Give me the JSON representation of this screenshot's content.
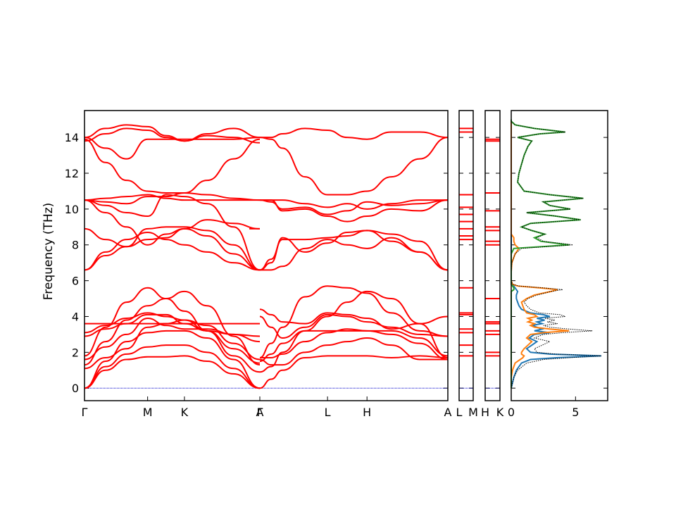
{
  "chart_data": {
    "type": "line",
    "ylabel": "Frequency (THz)",
    "ylim": [
      -0.7,
      15.5
    ],
    "yticks": [
      0,
      2,
      4,
      6,
      8,
      10,
      12,
      14
    ],
    "colors": {
      "bands": "#ff0000",
      "zero_line": "#0000cc",
      "dos_blue": "#1f77b4",
      "dos_orange": "#ff7f0e",
      "dos_green": "#2ca02c",
      "dos_total": "#000000"
    },
    "band_segments": [
      {
        "labels": [
          "Γ",
          "M",
          "K",
          "Γ"
        ],
        "xlim": [
          0,
          1
        ],
        "label_x": [
          0,
          0.36,
          0.57,
          1
        ],
        "x": [
          0,
          0.12,
          0.24,
          0.36,
          0.465,
          0.57,
          0.7,
          0.85,
          1
        ],
        "bands": [
          [
            0,
            1.0,
            1.6,
            1.75,
            1.75,
            1.8,
            1.5,
            0.8,
            0
          ],
          [
            0,
            1.2,
            1.9,
            2.3,
            2.4,
            2.4,
            2.0,
            1.1,
            0
          ],
          [
            0,
            1.5,
            2.6,
            3.1,
            3.2,
            3.2,
            2.8,
            1.6,
            0
          ],
          [
            1.1,
            1.7,
            2.2,
            3.4,
            3.6,
            3.8,
            3.2,
            2.2,
            1.4
          ],
          [
            1.6,
            2.3,
            3.0,
            3.9,
            3.5,
            3.3,
            3.3,
            3.0,
            2.9
          ],
          [
            2.9,
            3.3,
            3.6,
            4.1,
            4.1,
            3.6,
            3.2,
            3.0,
            2.6
          ],
          [
            3.1,
            3.5,
            3.9,
            4.2,
            4.0,
            3.8,
            3.5,
            2.5,
            1.6
          ],
          [
            1.8,
            3.4,
            4.8,
            5.6,
            5.0,
            4.3,
            3.2,
            1.8,
            0.9
          ],
          [
            1.3,
            2.6,
            3.8,
            4.6,
            5.0,
            5.4,
            4.6,
            2.9,
            1.3
          ],
          [
            6.6,
            7.6,
            8.3,
            8.7,
            8.3,
            8.0,
            7.6,
            7.0,
            6.6
          ],
          [
            6.6,
            7.4,
            7.9,
            8.3,
            8.4,
            8.9,
            8.5,
            7.5,
            6.6
          ],
          [
            8.9,
            8.3,
            7.9,
            8.9,
            9.0,
            9.0,
            8.8,
            8.0,
            6.6
          ],
          [
            10.5,
            9.8,
            9.0,
            8.0,
            8.6,
            8.9,
            9.4,
            9.2,
            8.9
          ],
          [
            10.5,
            10.2,
            9.8,
            9.6,
            10.8,
            10.7,
            10.3,
            9.0,
            6.6
          ],
          [
            10.5,
            10.6,
            10.7,
            10.8,
            10.6,
            10.5,
            10.5,
            10.5,
            10.5
          ],
          [
            10.5,
            10.4,
            10.3,
            10.7,
            10.7,
            10.9,
            10.8,
            10.6,
            10.5
          ],
          [
            13.9,
            12.6,
            11.6,
            11.0,
            10.9,
            10.9,
            11.6,
            12.8,
            13.9
          ],
          [
            14.0,
            13.4,
            12.8,
            13.9,
            13.9,
            13.9,
            13.9,
            13.9,
            14.0
          ],
          [
            14.0,
            14.5,
            14.7,
            14.6,
            14.1,
            13.8,
            14.2,
            14.5,
            14.0
          ],
          [
            13.8,
            14.2,
            14.5,
            14.4,
            14.0,
            13.8,
            14.1,
            14.0,
            13.7
          ]
        ],
        "flat_lines": [
          {
            "y": 3.6,
            "x_from": 0,
            "x_to": 1
          },
          {
            "y": 8.9,
            "x_from": 0.94,
            "x_to": 1
          }
        ]
      },
      {
        "labels": [
          "A",
          "L",
          "H",
          "A"
        ],
        "xlim": [
          0,
          1
        ],
        "label_x": [
          0,
          0.36,
          0.57,
          1
        ],
        "x": [
          0,
          0.06,
          0.12,
          0.24,
          0.36,
          0.465,
          0.57,
          0.7,
          0.85,
          1
        ],
        "bands": [
          [
            0,
            0.5,
            1.0,
            1.7,
            1.8,
            1.8,
            1.8,
            1.7,
            1.8,
            1.7
          ],
          [
            1.6,
            1.3,
            1.3,
            2.0,
            2.4,
            2.6,
            2.8,
            2.4,
            1.6,
            1.6
          ],
          [
            1.7,
            1.7,
            1.9,
            2.6,
            3.1,
            3.3,
            3.2,
            3.0,
            2.5,
            1.6
          ],
          [
            1.5,
            1.9,
            2.5,
            3.2,
            3.2,
            3.2,
            3.2,
            3.2,
            2.8,
            1.8
          ],
          [
            4.0,
            3.4,
            2.8,
            3.4,
            4.1,
            4.0,
            3.7,
            3.4,
            3.0,
            2.9
          ],
          [
            4.4,
            4.1,
            3.7,
            3.6,
            4.2,
            4.1,
            3.9,
            3.3,
            3.6,
            4.0
          ],
          [
            1.7,
            2.5,
            3.4,
            5.1,
            5.7,
            5.6,
            5.3,
            4.2,
            3.2,
            2.9
          ],
          [
            0.9,
            1.2,
            2.0,
            3.2,
            4.0,
            4.8,
            5.4,
            5.0,
            3.6,
            1.7
          ],
          [
            6.6,
            6.6,
            6.8,
            7.8,
            8.3,
            8.0,
            7.8,
            8.4,
            7.6,
            6.6
          ],
          [
            6.6,
            7.0,
            8.4,
            7.6,
            8.1,
            8.7,
            8.8,
            8.6,
            8.2,
            6.6
          ],
          [
            6.6,
            7.2,
            8.3,
            8.3,
            8.4,
            8.5,
            8.8,
            8.2,
            7.6,
            6.6
          ],
          [
            10.5,
            10.5,
            9.9,
            10.0,
            9.6,
            9.3,
            9.6,
            10.0,
            9.9,
            10.5
          ],
          [
            10.5,
            10.4,
            10.0,
            10.1,
            9.7,
            9.9,
            10.4,
            10.2,
            10.3,
            10.5
          ],
          [
            10.5,
            10.5,
            10.5,
            10.3,
            10.1,
            10.3,
            10.0,
            10.3,
            10.5,
            10.5
          ],
          [
            14.0,
            13.9,
            13.4,
            11.8,
            10.8,
            10.8,
            11.0,
            11.8,
            12.8,
            14.0
          ],
          [
            14.0,
            14.0,
            14.2,
            14.5,
            14.4,
            14.0,
            13.9,
            14.3,
            14.3,
            14.0
          ]
        ],
        "flat_lines": []
      },
      {
        "labels": [
          "L",
          "M"
        ],
        "xlim": [
          0,
          1
        ],
        "label_x": [
          0,
          1
        ],
        "x": [
          0,
          1
        ],
        "bands": [
          [
            1.8,
            1.8
          ],
          [
            2.4,
            2.4
          ],
          [
            3.1,
            3.1
          ],
          [
            3.3,
            3.3
          ],
          [
            4.1,
            4.1
          ],
          [
            4.2,
            4.2
          ],
          [
            5.6,
            5.6
          ],
          [
            8.3,
            8.3
          ],
          [
            8.5,
            8.5
          ],
          [
            8.9,
            8.9
          ],
          [
            9.3,
            9.3
          ],
          [
            9.7,
            9.7
          ],
          [
            10.1,
            10.1
          ],
          [
            10.8,
            10.8
          ],
          [
            14.3,
            14.3
          ],
          [
            14.5,
            14.5
          ]
        ],
        "flat_lines": []
      },
      {
        "labels": [
          "H",
          "K"
        ],
        "xlim": [
          0,
          1
        ],
        "label_x": [
          0,
          1
        ],
        "x": [
          0,
          1
        ],
        "bands": [
          [
            1.8,
            1.8
          ],
          [
            2.0,
            2.0
          ],
          [
            3.0,
            3.0
          ],
          [
            3.2,
            3.2
          ],
          [
            3.6,
            3.6
          ],
          [
            3.7,
            3.7
          ],
          [
            5.0,
            5.0
          ],
          [
            8.0,
            8.0
          ],
          [
            8.2,
            8.2
          ],
          [
            8.8,
            8.8
          ],
          [
            9.0,
            9.0
          ],
          [
            9.9,
            9.9
          ],
          [
            10.9,
            10.9
          ],
          [
            13.8,
            13.8
          ],
          [
            13.9,
            13.9
          ]
        ],
        "flat_lines": []
      }
    ],
    "dos": {
      "xlim": [
        0,
        7.5
      ],
      "xticks": [
        0,
        5
      ],
      "freq": [
        0,
        0.3,
        0.6,
        1.0,
        1.4,
        1.6,
        1.7,
        1.8,
        1.9,
        2.0,
        2.2,
        2.4,
        2.6,
        2.8,
        3.0,
        3.1,
        3.2,
        3.3,
        3.4,
        3.5,
        3.6,
        3.7,
        3.8,
        3.9,
        4.0,
        4.1,
        4.2,
        4.4,
        4.6,
        4.8,
        5.0,
        5.2,
        5.4,
        5.5,
        5.6,
        5.7,
        5.8,
        6.0,
        6.5,
        7.0,
        7.5,
        7.8,
        8.0,
        8.2,
        8.4,
        8.6,
        8.8,
        9.0,
        9.2,
        9.4,
        9.6,
        9.8,
        10.0,
        10.2,
        10.4,
        10.6,
        10.8,
        11.0,
        11.5,
        12.0,
        12.5,
        13.0,
        13.5,
        13.8,
        14.0,
        14.2,
        14.3,
        14.5,
        14.7,
        14.9,
        15.0
      ],
      "total": [
        0,
        0.1,
        0.2,
        0.5,
        1.2,
        2.5,
        4.5,
        7.0,
        3.5,
        2.0,
        1.8,
        2.4,
        3.0,
        1.8,
        2.5,
        4.0,
        6.3,
        4.5,
        3.0,
        2.5,
        3.6,
        2.8,
        3.4,
        2.6,
        4.2,
        3.8,
        2.2,
        1.5,
        1.2,
        1.0,
        1.3,
        2.0,
        3.1,
        4.0,
        2.5,
        0.6,
        0.1,
        0,
        0,
        0.05,
        0.3,
        0.8,
        4.8,
        2.5,
        2.0,
        2.6,
        1.6,
        0.8,
        1.5,
        5.4,
        3.5,
        1.2,
        4.6,
        3.0,
        2.5,
        5.6,
        3.0,
        1.0,
        0.5,
        0.6,
        0.8,
        1.0,
        1.3,
        1.6,
        0.5,
        2.2,
        4.2,
        1.8,
        0.3,
        0,
        0
      ],
      "partials": [
        {
          "color_key": "dos_blue",
          "values": [
            0,
            0.1,
            0.2,
            0.4,
            0.8,
            1.5,
            3.5,
            7.0,
            3.0,
            1.5,
            1.2,
            1.6,
            2.0,
            1.4,
            1.8,
            3.0,
            1.8,
            2.4,
            2.0,
            1.6,
            2.4,
            2.0,
            2.6,
            2.0,
            3.0,
            2.5,
            1.5,
            0.8,
            0.6,
            0.5,
            0.4,
            0.4,
            0.5,
            0.4,
            0.3,
            0.2,
            0,
            0,
            0,
            0,
            0,
            0,
            0,
            0,
            0,
            0,
            0,
            0,
            0,
            0,
            0,
            0,
            0,
            0,
            0,
            0,
            0,
            0,
            0,
            0,
            0,
            0,
            0,
            0,
            0,
            0,
            0,
            0,
            0,
            0,
            0
          ]
        },
        {
          "color_key": "dos_orange",
          "values": [
            0,
            0,
            0,
            0.1,
            0.3,
            0.7,
            0.9,
            1.0,
            0.8,
            0.8,
            1.0,
            1.3,
            1.6,
            1.2,
            1.5,
            2.5,
            4.5,
            3.0,
            1.8,
            1.5,
            1.8,
            1.3,
            1.6,
            1.3,
            2.0,
            1.8,
            1.2,
            1.0,
            0.9,
            0.8,
            1.2,
            1.8,
            3.1,
            3.6,
            2.2,
            0.5,
            0.1,
            0,
            0,
            0.05,
            0.3,
            0.6,
            0.3,
            0.2,
            0.2,
            0,
            0,
            0,
            0,
            0,
            0,
            0,
            0,
            0,
            0,
            0,
            0,
            0,
            0,
            0,
            0,
            0,
            0,
            0,
            0,
            0,
            0,
            0,
            0,
            0,
            0
          ]
        },
        {
          "color_key": "dos_green",
          "values": [
            0,
            0,
            0,
            0,
            0,
            0,
            0,
            0,
            0,
            0,
            0,
            0,
            0,
            0,
            0,
            0,
            0,
            0,
            0,
            0,
            0,
            0,
            0,
            0,
            0,
            0,
            0,
            0,
            0,
            0,
            0,
            0,
            0,
            0.2,
            0.2,
            0.1,
            0,
            0,
            0,
            0,
            0,
            0.2,
            4.5,
            2.3,
            1.8,
            2.6,
            1.6,
            0.8,
            1.5,
            5.4,
            3.5,
            1.2,
            4.6,
            3.0,
            2.5,
            5.6,
            3.0,
            1.0,
            0.5,
            0.6,
            0.8,
            1.0,
            1.3,
            1.6,
            0.5,
            2.2,
            4.2,
            1.8,
            0.3,
            0,
            0
          ]
        }
      ]
    }
  }
}
